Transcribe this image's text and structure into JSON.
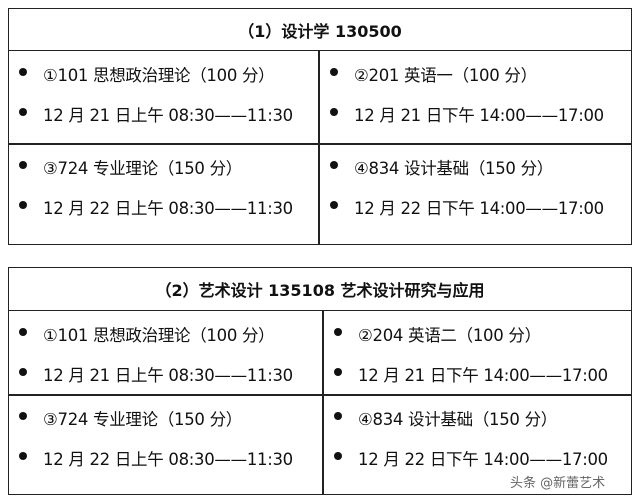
{
  "tables": [
    {
      "title": "（1）设计学 130500",
      "cells": [
        {
          "subject": "①101 思想政治理论（100 分）",
          "time": "12 月 21 日上午 08:30——11:30"
        },
        {
          "subject": "②201 英语一（100 分）",
          "time": "12 月 21 日下午 14:00——17:00"
        },
        {
          "subject": "③724 专业理论（150 分）",
          "time": "12 月 22 日上午 08:30——11:30"
        },
        {
          "subject": "④834 设计基础（150 分）",
          "time": "12 月 22 日下午 14:00——17:00"
        }
      ]
    },
    {
      "title": "（2）艺术设计 135108 艺术设计研究与应用",
      "cells": [
        {
          "subject": "①101 思想政治理论（100 分）",
          "time": "12 月 21 日上午 08:30——11:30"
        },
        {
          "subject": "②204 英语二（100 分）",
          "time": "12 月 21 日下午 14:00——17:00"
        },
        {
          "subject": "③724 专业理论（150 分）",
          "time": "12 月 22 日上午 08:30——11:30"
        },
        {
          "subject": "④834 设计基础（150 分）",
          "time": "12 月 22 日下午 14:00——17:00"
        }
      ]
    }
  ],
  "watermark": "头条 @新蕾艺术"
}
